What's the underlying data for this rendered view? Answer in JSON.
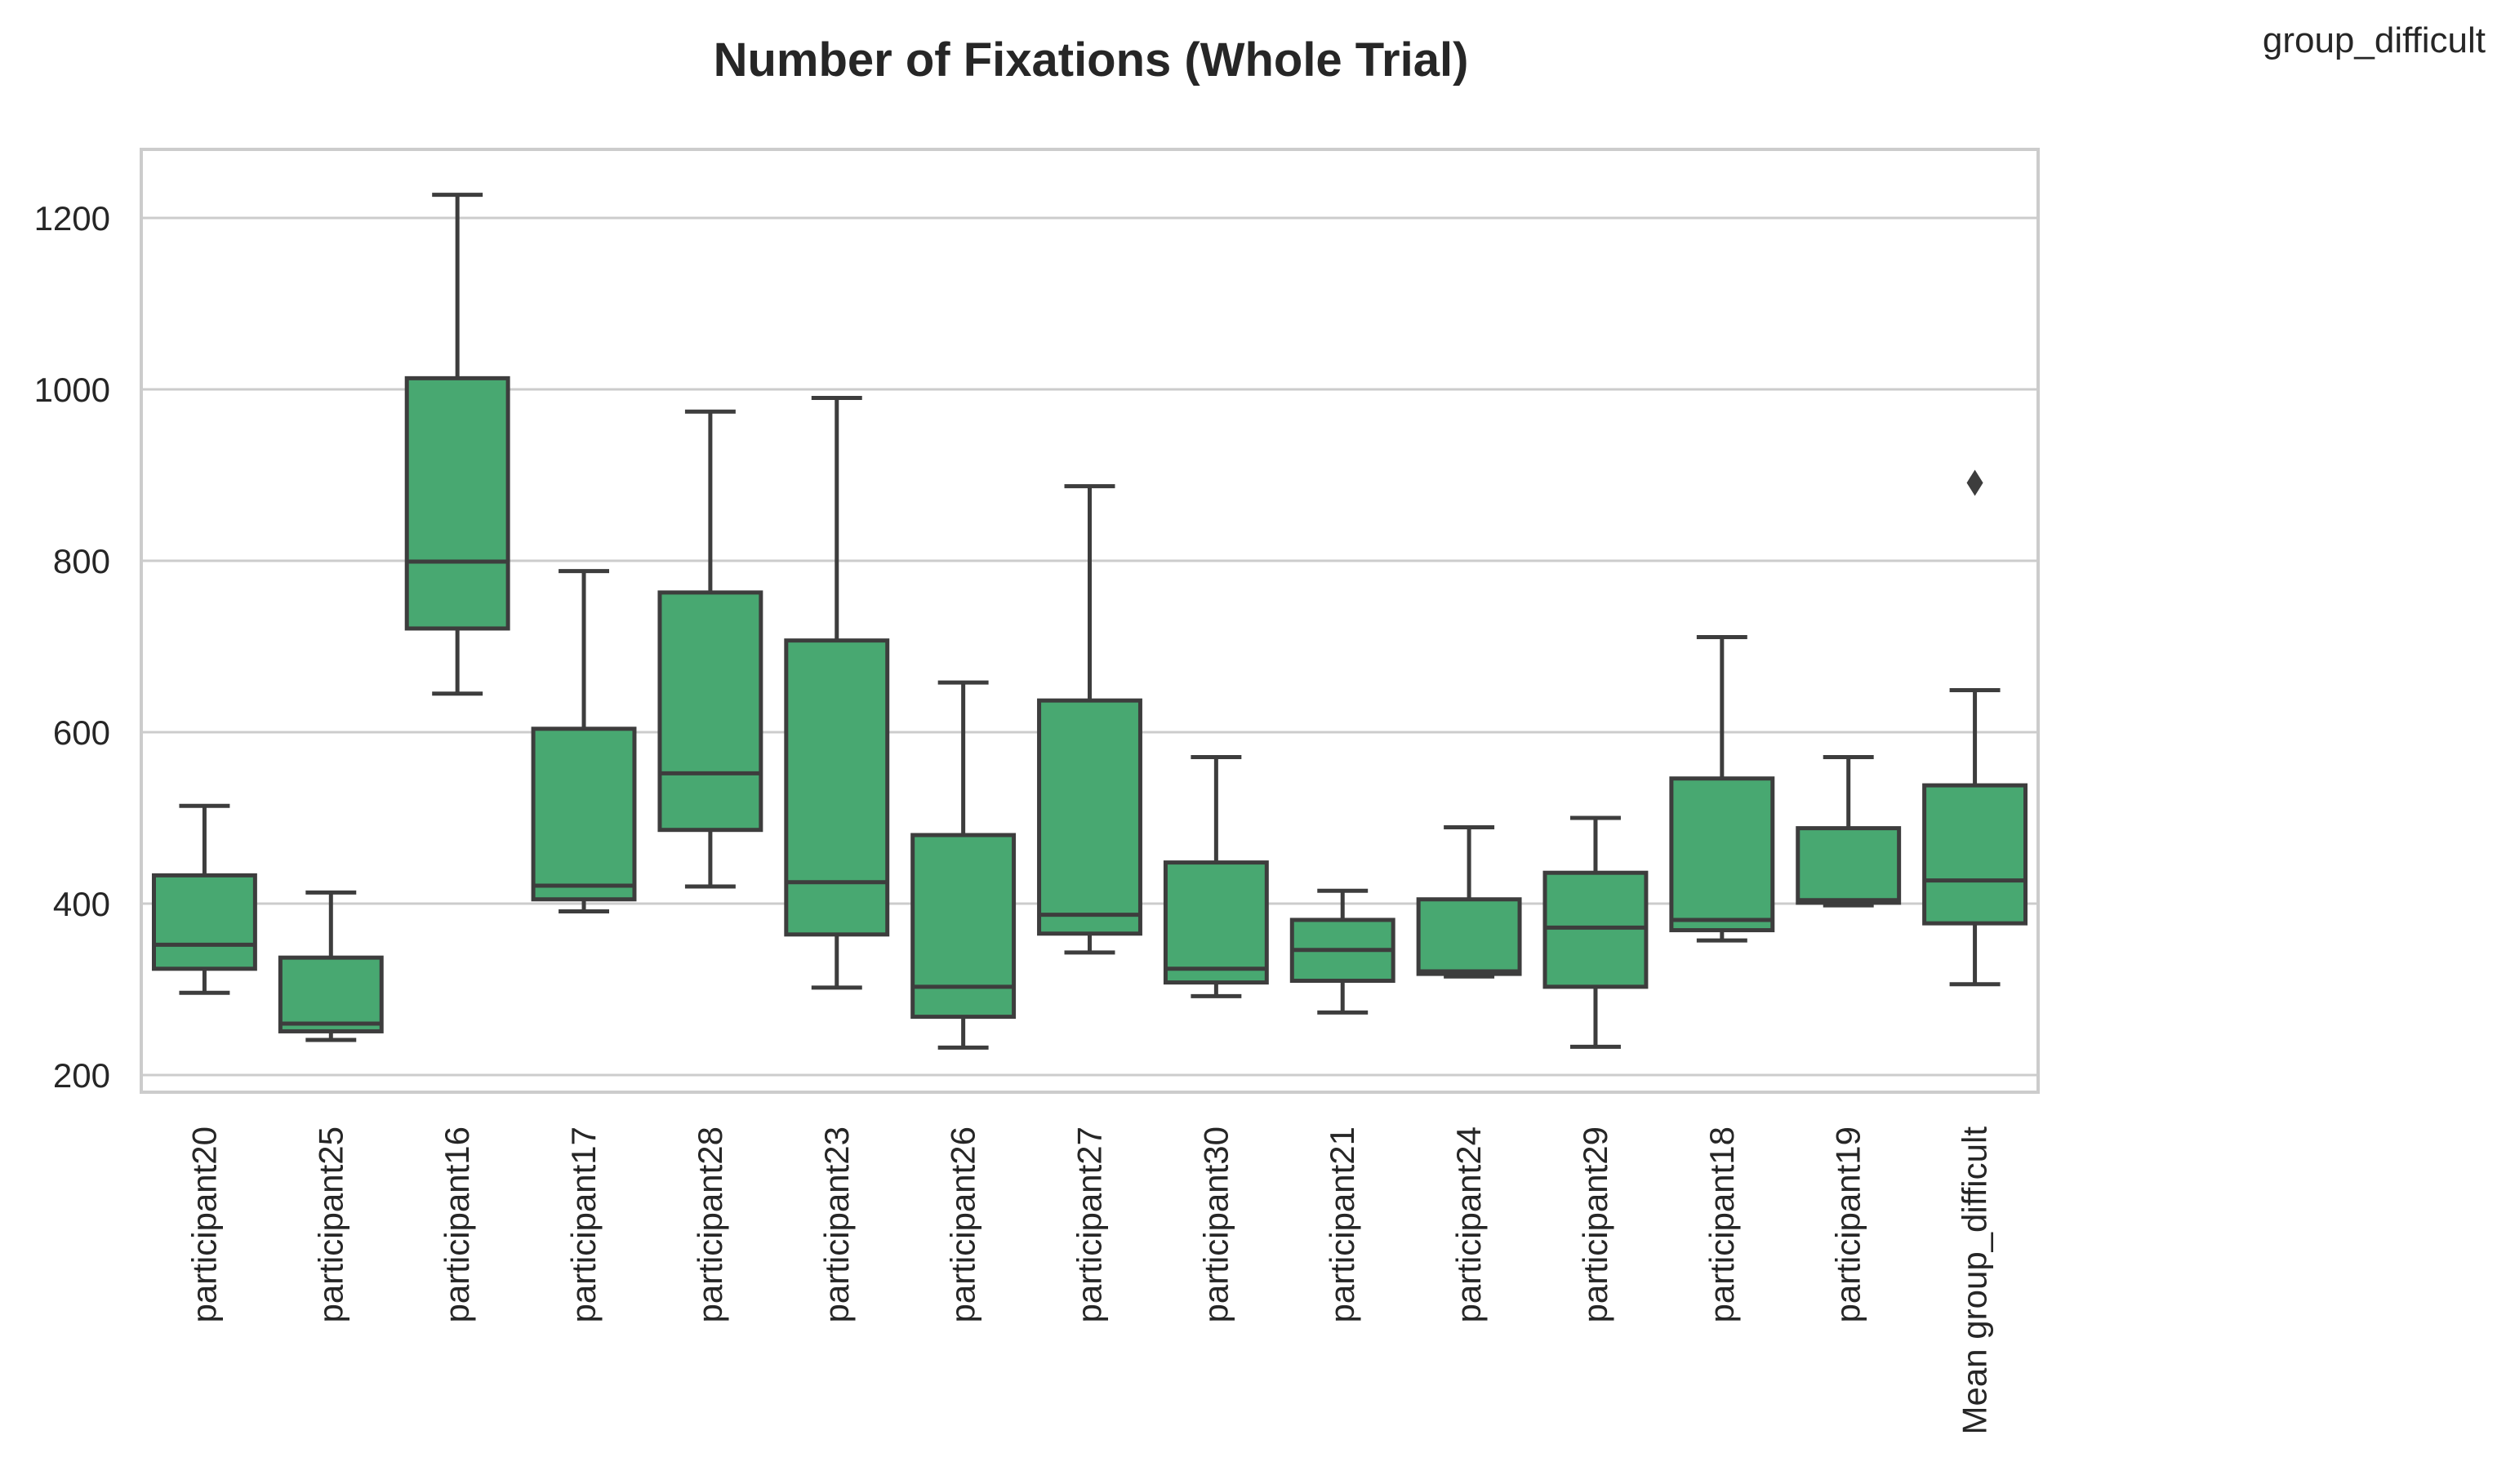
{
  "chart_data": {
    "type": "box",
    "title": "Number of Fixations (Whole Trial)",
    "legend_label": "group_difficult",
    "legend_placement": "top-right",
    "xlabel": "",
    "ylabel": "",
    "ylim": [
      180,
      1280
    ],
    "yticks": [
      200,
      400,
      600,
      800,
      1000,
      1200
    ],
    "grid": true,
    "box_color": "#48a871",
    "line_color": "#3d3d3d",
    "grid_color": "#cccccc",
    "categories": [
      "participant20",
      "participant25",
      "participant16",
      "participant17",
      "participant28",
      "participant23",
      "participant26",
      "participant27",
      "participant30",
      "participant21",
      "participant24",
      "participant29",
      "participant18",
      "participant19",
      "Mean group_difficult"
    ],
    "boxes": [
      {
        "whisker_low": 296,
        "q1": 324,
        "median": 352,
        "q3": 433,
        "whisker_high": 514,
        "outliers": []
      },
      {
        "whisker_low": 241,
        "q1": 251,
        "median": 260,
        "q3": 337,
        "whisker_high": 413,
        "outliers": []
      },
      {
        "whisker_low": 645,
        "q1": 721,
        "median": 799,
        "q3": 1013,
        "whisker_high": 1227,
        "outliers": []
      },
      {
        "whisker_low": 391,
        "q1": 405,
        "median": 421,
        "q3": 604,
        "whisker_high": 788,
        "outliers": []
      },
      {
        "whisker_low": 420,
        "q1": 486,
        "median": 552,
        "q3": 763,
        "whisker_high": 974,
        "outliers": []
      },
      {
        "whisker_low": 302,
        "q1": 364,
        "median": 425,
        "q3": 707,
        "whisker_high": 990,
        "outliers": []
      },
      {
        "whisker_low": 232,
        "q1": 268,
        "median": 303,
        "q3": 480,
        "whisker_high": 658,
        "outliers": []
      },
      {
        "whisker_low": 343,
        "q1": 365,
        "median": 387,
        "q3": 637,
        "whisker_high": 887,
        "outliers": []
      },
      {
        "whisker_low": 292,
        "q1": 308,
        "median": 324,
        "q3": 448,
        "whisker_high": 571,
        "outliers": []
      },
      {
        "whisker_low": 273,
        "q1": 310,
        "median": 346,
        "q3": 381,
        "whisker_high": 415,
        "outliers": []
      },
      {
        "whisker_low": 315,
        "q1": 318,
        "median": 321,
        "q3": 405,
        "whisker_high": 489,
        "outliers": []
      },
      {
        "whisker_low": 233,
        "q1": 303,
        "median": 372,
        "q3": 436,
        "whisker_high": 500,
        "outliers": []
      },
      {
        "whisker_low": 357,
        "q1": 369,
        "median": 381,
        "q3": 546,
        "whisker_high": 711,
        "outliers": []
      },
      {
        "whisker_low": 398,
        "q1": 401,
        "median": 404,
        "q3": 488,
        "whisker_high": 571,
        "outliers": []
      },
      {
        "whisker_low": 306,
        "q1": 377,
        "median": 427,
        "q3": 538,
        "whisker_high": 649,
        "outliers": [
          891
        ]
      }
    ]
  }
}
